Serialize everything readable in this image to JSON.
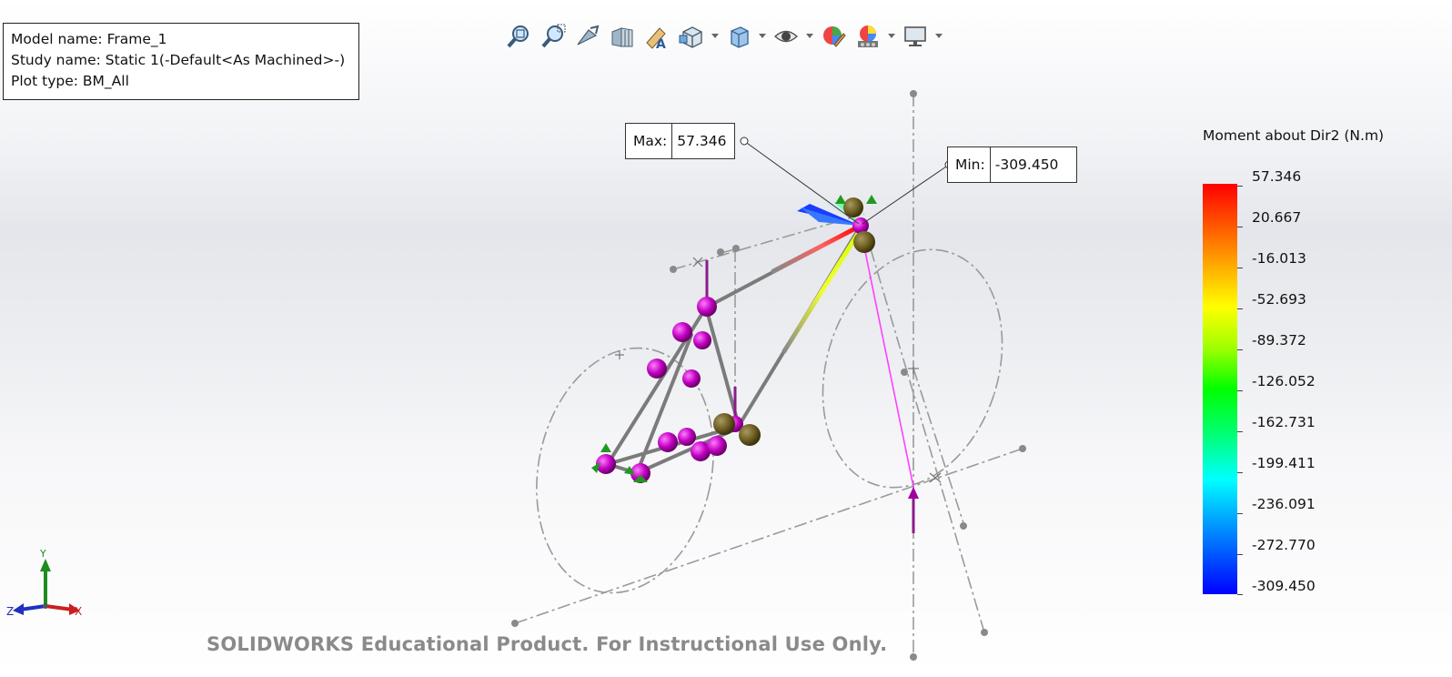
{
  "info": {
    "model_name": "Model name: Frame_1",
    "study_name": "Study name: Static 1(-Default<As Machined>-)",
    "plot_type": "Plot type:  BM_All"
  },
  "toolbar": {
    "buttons": [
      {
        "name": "zoom-to-fit-icon"
      },
      {
        "name": "zoom-to-area-icon"
      },
      {
        "name": "previous-view-icon"
      },
      {
        "name": "section-view-icon"
      },
      {
        "name": "plot-tools-icon"
      },
      {
        "name": "view-orientation-icon",
        "dropdown": true
      },
      {
        "name": "display-style-icon",
        "dropdown": true
      },
      {
        "name": "hide-show-items-icon",
        "dropdown": true
      },
      {
        "name": "edit-appearance-icon"
      },
      {
        "name": "apply-scene-icon",
        "dropdown": true
      },
      {
        "name": "view-settings-icon",
        "dropdown": true
      }
    ]
  },
  "callouts": {
    "max_label": "Max:",
    "max_value": "57.346",
    "min_label": "Min:",
    "min_value": "-309.450"
  },
  "legend": {
    "title": "Moment about Dir2 (N.m)",
    "labels": [
      "57.346",
      "20.667",
      "-16.013",
      "-52.693",
      "-89.372",
      "-126.052",
      "-162.731",
      "-199.411",
      "-236.091",
      "-272.770",
      "-309.450"
    ],
    "colors": {
      "top": "#ff0000",
      "mid": "#00ff00",
      "bottom": "#0000ff"
    }
  },
  "watermark": "SOLIDWORKS Educational Product. For Instructional Use Only.",
  "triad": {
    "x": "X",
    "y": "Y",
    "z": "Z"
  }
}
